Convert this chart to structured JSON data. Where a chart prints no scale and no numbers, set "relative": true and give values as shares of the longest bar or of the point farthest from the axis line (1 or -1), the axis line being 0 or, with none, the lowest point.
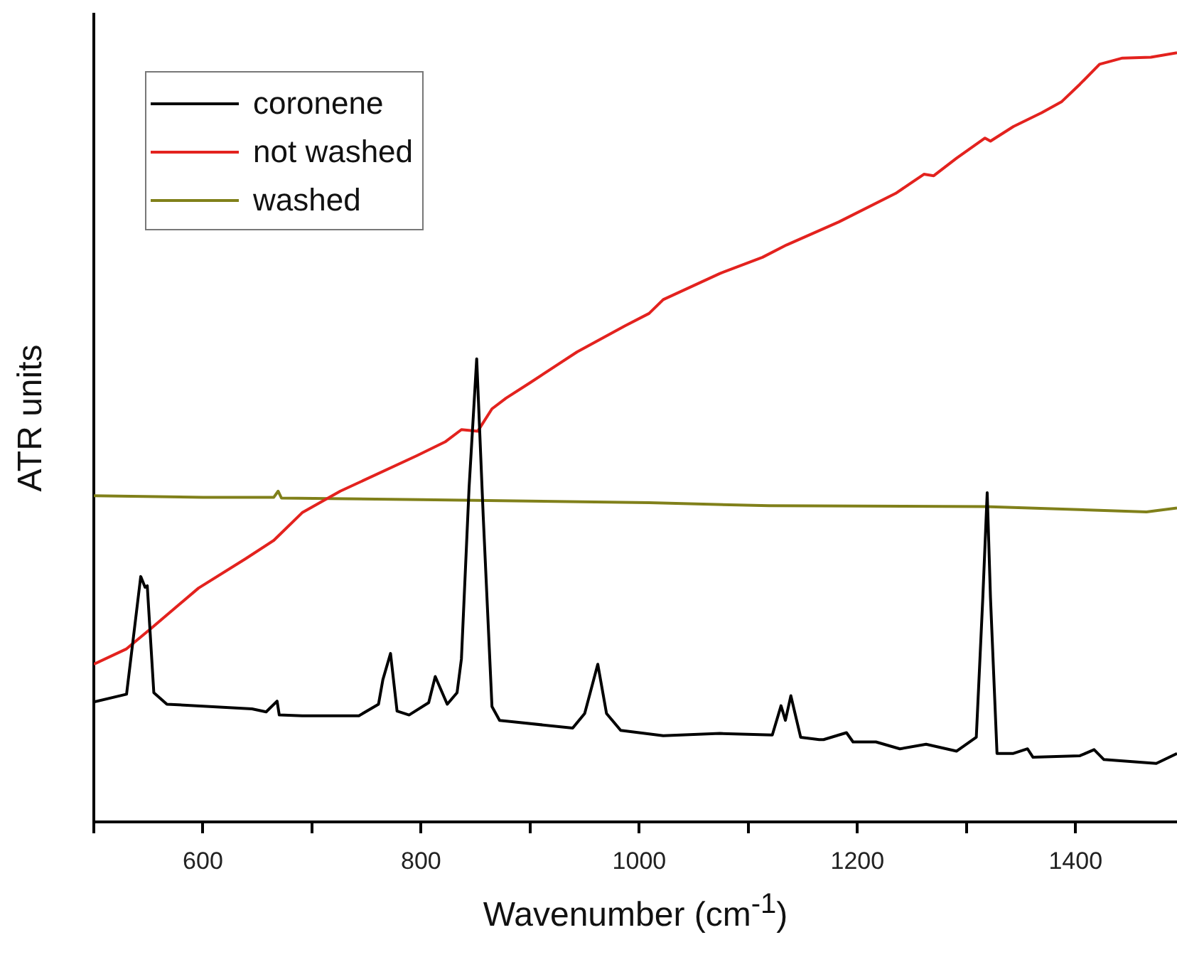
{
  "chart_data": {
    "type": "line",
    "xlabel": "Wavenumber (cm$^{-1}$)",
    "ylabel": "ATR units",
    "relative": true,
    "legend": "top left",
    "grid": false,
    "marker": "none",
    "xlim": [
      500,
      1493
    ],
    "xticks": [
      {
        "value": 500,
        "label": null
      },
      600,
      {
        "value": 700,
        "label": null
      },
      800,
      {
        "value": 900,
        "label": null
      },
      1000,
      {
        "value": 1100,
        "label": null
      },
      1200,
      {
        "value": 1300,
        "label": null
      },
      1400
    ],
    "series": [
      {
        "name": "coronene",
        "color": "#000000",
        "x": [
          500,
          530,
          543,
          547,
          549,
          555,
          567,
          645,
          658,
          668,
          670,
          691,
          743,
          761,
          765,
          772,
          778,
          789,
          807,
          813,
          824,
          833,
          837,
          844,
          851,
          857,
          865,
          872,
          939,
          950,
          962,
          970,
          983,
          1022,
          1074,
          1122,
          1130,
          1134,
          1139,
          1148,
          1165,
          1169,
          1190,
          1196,
          1217,
          1239,
          1263,
          1291,
          1309,
          1315,
          1319,
          1322,
          1328,
          1343,
          1356,
          1361,
          1404,
          1417,
          1426,
          1474,
          1493
        ],
        "values": [
          0.156,
          0.166,
          0.319,
          0.305,
          0.307,
          0.168,
          0.153,
          0.147,
          0.143,
          0.157,
          0.139,
          0.138,
          0.138,
          0.153,
          0.185,
          0.219,
          0.144,
          0.139,
          0.155,
          0.189,
          0.153,
          0.168,
          0.212,
          0.434,
          0.602,
          0.397,
          0.15,
          0.132,
          0.122,
          0.141,
          0.205,
          0.141,
          0.119,
          0.112,
          0.115,
          0.113,
          0.151,
          0.132,
          0.164,
          0.11,
          0.107,
          0.107,
          0.116,
          0.104,
          0.104,
          0.095,
          0.101,
          0.092,
          0.11,
          0.292,
          0.428,
          0.292,
          0.089,
          0.089,
          0.095,
          0.084,
          0.086,
          0.094,
          0.081,
          0.076,
          0.089
        ]
      },
      {
        "name": "not washed",
        "color": "#e3221e",
        "x": [
          500,
          530,
          552,
          596,
          639,
          665,
          691,
          726,
          796,
          822,
          837,
          852,
          865,
          878,
          900,
          943,
          987,
          1009,
          1022,
          1074,
          1113,
          1135,
          1183,
          1235,
          1261,
          1270,
          1291,
          1317,
          1322,
          1343,
          1369,
          1387,
          1404,
          1422,
          1443,
          1469,
          1493
        ],
        "values": [
          0.205,
          0.225,
          0.251,
          0.304,
          0.342,
          0.366,
          0.402,
          0.43,
          0.476,
          0.494,
          0.51,
          0.508,
          0.537,
          0.551,
          0.571,
          0.611,
          0.645,
          0.661,
          0.679,
          0.713,
          0.734,
          0.75,
          0.78,
          0.817,
          0.842,
          0.84,
          0.863,
          0.889,
          0.885,
          0.904,
          0.922,
          0.936,
          0.959,
          0.985,
          0.993,
          0.994,
          1
        ]
      },
      {
        "name": "washed",
        "color": "#80801a",
        "x": [
          500,
          600,
          665,
          669,
          672,
          800,
          1009,
          1119,
          1317,
          1465,
          1493
        ],
        "values": [
          0.424,
          0.422,
          0.422,
          0.43,
          0.421,
          0.419,
          0.415,
          0.411,
          0.41,
          0.403,
          0.408
        ]
      }
    ]
  }
}
